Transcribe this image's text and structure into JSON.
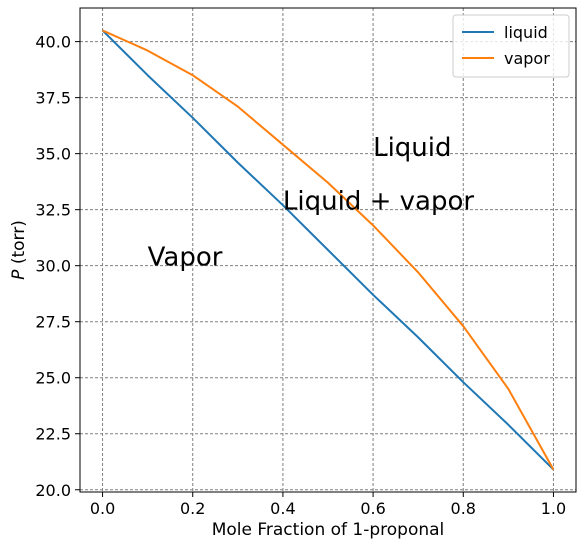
{
  "chart_data": {
    "type": "line",
    "title": "",
    "xlabel": "Mole Fraction of 1-proponal",
    "ylabel_italic": "P",
    "ylabel_unit": " (torr)",
    "xlim": [
      -0.05,
      1.05
    ],
    "ylim": [
      19.9,
      41.5
    ],
    "xticks": [
      0.0,
      0.2,
      0.4,
      0.6,
      0.8,
      1.0
    ],
    "xtick_labels": [
      "0.0",
      "0.2",
      "0.4",
      "0.6",
      "0.8",
      "1.0"
    ],
    "yticks": [
      20.0,
      22.5,
      25.0,
      27.5,
      30.0,
      32.5,
      35.0,
      37.5,
      40.0
    ],
    "ytick_labels": [
      "20.0",
      "22.5",
      "25.0",
      "27.5",
      "30.0",
      "32.5",
      "35.0",
      "37.5",
      "40.0"
    ],
    "grid": true,
    "legend_position": "upper right",
    "series": [
      {
        "name": "liquid",
        "color": "#1f77b4",
        "x": [
          0.0,
          0.1,
          0.2,
          0.3,
          0.4,
          0.5,
          0.6,
          0.7,
          0.8,
          0.9,
          1.0
        ],
        "y": [
          40.5,
          38.5,
          36.6,
          34.6,
          32.7,
          30.7,
          28.7,
          26.8,
          24.8,
          22.9,
          20.9
        ]
      },
      {
        "name": "vapor",
        "color": "#ff7f0e",
        "x": [
          0.0,
          0.1,
          0.2,
          0.3,
          0.4,
          0.5,
          0.6,
          0.7,
          0.8,
          0.9,
          1.0
        ],
        "y": [
          40.5,
          39.6,
          38.5,
          37.1,
          35.4,
          33.7,
          31.8,
          29.7,
          27.3,
          24.5,
          20.9
        ]
      }
    ],
    "annotations": [
      {
        "text": "Liquid",
        "x": 0.6,
        "y": 34.9
      },
      {
        "text": "Liquid + vapor",
        "x": 0.4,
        "y": 32.5
      },
      {
        "text": "Vapor",
        "x": 0.1,
        "y": 30.0
      }
    ]
  }
}
